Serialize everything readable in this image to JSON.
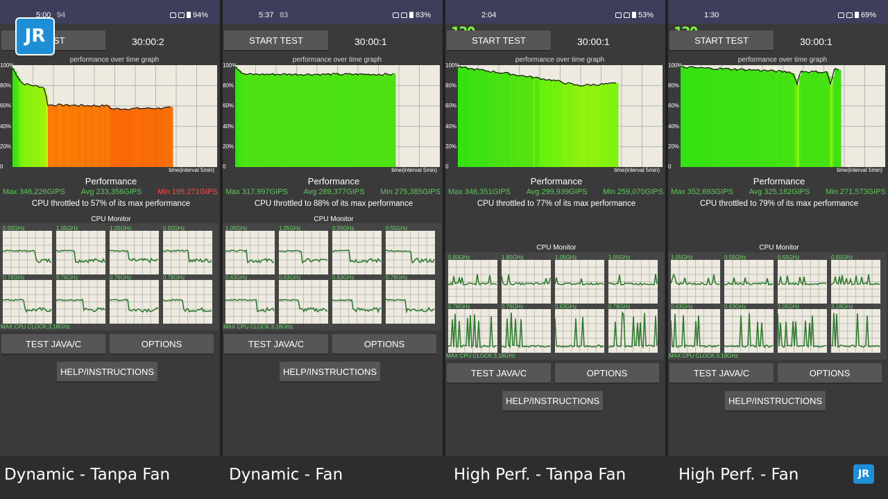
{
  "ui": {
    "graph_title": "performance over time graph",
    "y_ticks": [
      "100%",
      "80%",
      "60%",
      "40%",
      "20%",
      "0"
    ],
    "axis_note": "time(interval 5min)",
    "performance_title": "Performance",
    "cpu_monitor_title": "CPU Monitor",
    "max_clock_label": "MAX CPU CLOCK:3.18GHz",
    "test_java_label": "TEST JAVA/C",
    "options_label": "OPTIONS",
    "help_label": "HELP/INSTRUCTIONS",
    "logo_text": "JR"
  },
  "colors": {
    "max_stat": "#5ec85e",
    "avg_stat": "#5ec85e",
    "min_stat_green": "#5ec85e",
    "min_stat_red": "#ff4a4a"
  },
  "panels": [
    {
      "status": {
        "time": "5:00",
        "extra": "94",
        "battery": "94%"
      },
      "show_120": false,
      "start_label": "TEST",
      "timer": "30:00:2",
      "stats": {
        "max": "Max 346,226GIPS",
        "avg": "Avg 233,356GIPS",
        "min": "Min 195,271GIPS",
        "min_red": true
      },
      "throttle": "CPU throttled to 57% of its max performance",
      "cpu_high": true,
      "freqs": [
        "0.55GHz",
        "1.05GHz",
        "1.05GHz",
        "0.55GHz",
        "0.76GHz",
        "0.76GHz",
        "0.76GHz",
        "0.78GHz"
      ],
      "caption": "Dynamic - Tanpa Fan",
      "perf_profile": {
        "end_fraction": 0.78,
        "levels": [
          [
            0,
            97
          ],
          [
            0.06,
            82
          ],
          [
            0.2,
            78
          ],
          [
            0.22,
            61
          ],
          [
            0.6,
            60
          ],
          [
            0.62,
            57
          ],
          [
            1,
            58
          ]
        ]
      }
    },
    {
      "status": {
        "time": "5:37",
        "extra": "83",
        "battery": "83%"
      },
      "show_120": false,
      "start_label": "START TEST",
      "timer": "30:00:1",
      "stats": {
        "max": "Max 317,997GIPS",
        "avg": "Avg 289,377GIPS",
        "min": "Min 275,385GIPS",
        "min_red": false
      },
      "throttle": "CPU throttled to 88% of its max performance",
      "cpu_high": true,
      "freqs": [
        "1.05GHz",
        "1.05GHz",
        "0.55GHz",
        "0.55GHz",
        "0.63GHz",
        "0.63GHz",
        "0.63GHz",
        "0.78GHz"
      ],
      "caption": "Dynamic - Fan",
      "perf_profile": {
        "end_fraction": 0.78,
        "levels": [
          [
            0,
            99
          ],
          [
            0.05,
            91
          ],
          [
            1,
            91
          ]
        ]
      }
    },
    {
      "status": {
        "time": "2:04",
        "extra": "",
        "battery": "53%"
      },
      "show_120": true,
      "start_label": "START TEST",
      "timer": "30:00:1",
      "stats": {
        "max": "Max 346,351GIPS",
        "avg": "Avg 299,939GIPS",
        "min": "Min 259,070GIPS",
        "min_red": false
      },
      "throttle": "CPU throttled to 77% of its max performance",
      "cpu_high": false,
      "freqs": [
        "0.80GHz",
        "1.80GHz",
        "1.05GHz",
        "1.05GHz",
        "0.76GHz",
        "0.76GHz",
        "0.63GHz",
        "0.78GHz"
      ],
      "caption": "High Perf. - Tanpa Fan",
      "perf_profile": {
        "end_fraction": 0.78,
        "levels": [
          [
            0,
            98
          ],
          [
            0.3,
            92
          ],
          [
            0.6,
            85
          ],
          [
            0.75,
            80
          ],
          [
            1,
            82
          ]
        ]
      }
    },
    {
      "status": {
        "time": "1:30",
        "extra": "",
        "battery": "69%"
      },
      "show_120": true,
      "start_label": "START TEST",
      "timer": "30:00:1",
      "stats": {
        "max": "Max 352,693GIPS",
        "avg": "Avg 325,182GIPS",
        "min": "Min 271,573GIPS",
        "min_red": false
      },
      "throttle": "CPU throttled to 79% of its max performance",
      "cpu_high": false,
      "freqs": [
        "1.05GHz",
        "0.55GHz",
        "0.55GHz",
        "0.55GHz",
        "0.63GHz",
        "0.63GHz",
        "1.05GHz",
        "3.18GHz"
      ],
      "caption": "High Perf. - Fan",
      "perf_profile": {
        "end_fraction": 0.78,
        "levels": [
          [
            0,
            98
          ],
          [
            0.5,
            95
          ],
          [
            0.7,
            93
          ],
          [
            0.73,
            82
          ],
          [
            0.75,
            94
          ],
          [
            0.92,
            93
          ],
          [
            0.94,
            80
          ],
          [
            0.96,
            96
          ],
          [
            1,
            95
          ]
        ]
      }
    }
  ]
}
